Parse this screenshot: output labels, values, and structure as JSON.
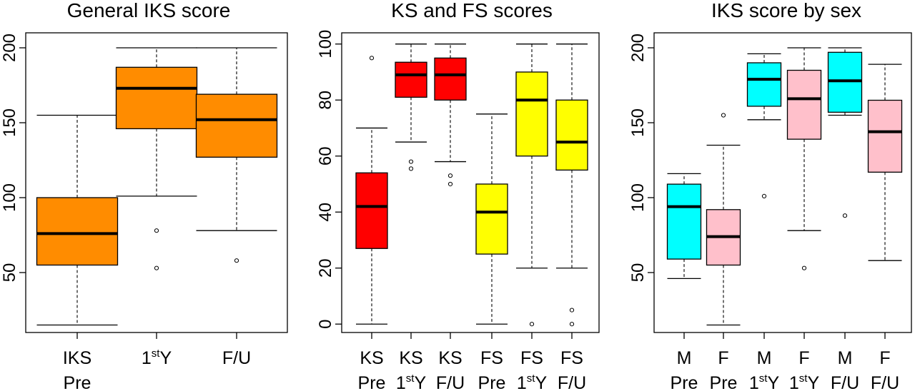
{
  "chart_data": [
    {
      "type": "box",
      "title": "General IKS score",
      "ylim": [
        10,
        210
      ],
      "yticks": [
        50,
        100,
        150,
        200
      ],
      "xlabel": "",
      "ylabel": "",
      "groups": [
        {
          "label1": "IKS",
          "label2": "Pre",
          "color": "#FF8C00",
          "min": 15,
          "q1": 55,
          "median": 76,
          "q3": 100,
          "max": 155,
          "outliers": []
        },
        {
          "label1": "1",
          "label1_sup": "st",
          "label1_tail": "Y",
          "label2": "",
          "color": "#FF8C00",
          "min": 101,
          "q1": 146,
          "median": 173,
          "q3": 187,
          "max": 200,
          "outliers": [
            78,
            53
          ]
        },
        {
          "label1": "F/U",
          "label2": "",
          "color": "#FF8C00",
          "min": 78,
          "q1": 127,
          "median": 152,
          "q3": 169,
          "max": 200,
          "outliers": [
            58
          ]
        }
      ]
    },
    {
      "type": "box",
      "title": "KS and FS scores",
      "ylim": [
        -3,
        104
      ],
      "yticks": [
        0,
        20,
        40,
        60,
        80,
        100
      ],
      "xlabel": "",
      "ylabel": "",
      "groups": [
        {
          "label1": "KS",
          "label2": "Pre",
          "color": "#FF0000",
          "min": 0,
          "q1": 27,
          "median": 42,
          "q3": 54,
          "max": 70,
          "outliers": [
            95
          ]
        },
        {
          "label1": "KS",
          "label2": "1",
          "label2_sup": "st",
          "label2_tail": "Y",
          "color": "#FF0000",
          "min": 65,
          "q1": 81,
          "median": 89,
          "q3": 93.5,
          "max": 100,
          "outliers": [
            58,
            55.5
          ]
        },
        {
          "label1": "KS",
          "label2": "F/U",
          "color": "#FF0000",
          "min": 58,
          "q1": 80,
          "median": 89,
          "q3": 95,
          "max": 100,
          "outliers": [
            53,
            50
          ]
        },
        {
          "label1": "FS",
          "label2": "Pre",
          "color": "#FFFF00",
          "min": 0,
          "q1": 25,
          "median": 40,
          "q3": 50,
          "max": 75,
          "outliers": []
        },
        {
          "label1": "FS",
          "label2": "1",
          "label2_sup": "st",
          "label2_tail": "Y",
          "color": "#FFFF00",
          "min": 20,
          "q1": 60,
          "median": 80,
          "q3": 90,
          "max": 100,
          "outliers": [
            0
          ]
        },
        {
          "label1": "FS",
          "label2": "F/U",
          "color": "#FFFF00",
          "min": 20,
          "q1": 55,
          "median": 65,
          "q3": 80,
          "max": 100,
          "outliers": [
            5,
            0
          ]
        }
      ]
    },
    {
      "type": "box",
      "title": "IKS score by sex",
      "ylim": [
        10,
        210
      ],
      "yticks": [
        50,
        100,
        150,
        200
      ],
      "xlabel": "",
      "ylabel": "",
      "groups": [
        {
          "label1": "M",
          "label2": "Pre",
          "color": "#00FFFF",
          "min": 46,
          "q1": 59,
          "median": 94,
          "q3": 109,
          "max": 116,
          "outliers": []
        },
        {
          "label1": "F",
          "label2": "Pre",
          "color": "#FFC0CB",
          "min": 15,
          "q1": 55,
          "median": 74,
          "q3": 92,
          "max": 135,
          "outliers": [
            155
          ]
        },
        {
          "label1": "M",
          "label2": "1",
          "label2_sup": "st",
          "label2_tail": "Y",
          "color": "#00FFFF",
          "min": 152,
          "q1": 161,
          "median": 179,
          "q3": 190,
          "max": 196,
          "outliers": [
            101
          ]
        },
        {
          "label1": "F",
          "label2": "1",
          "label2_sup": "st",
          "label2_tail": "Y",
          "color": "#FFC0CB",
          "min": 78,
          "q1": 139,
          "median": 166,
          "q3": 185,
          "max": 200,
          "outliers": [
            53
          ]
        },
        {
          "label1": "M",
          "label2": "F/U",
          "color": "#00FFFF",
          "min": 155,
          "q1": 157,
          "median": 178,
          "q3": 197,
          "max": 200,
          "outliers": [
            88
          ]
        },
        {
          "label1": "F",
          "label2": "F/U",
          "color": "#FFC0CB",
          "min": 58,
          "q1": 117,
          "median": 144,
          "q3": 165,
          "max": 189,
          "outliers": []
        }
      ]
    }
  ]
}
